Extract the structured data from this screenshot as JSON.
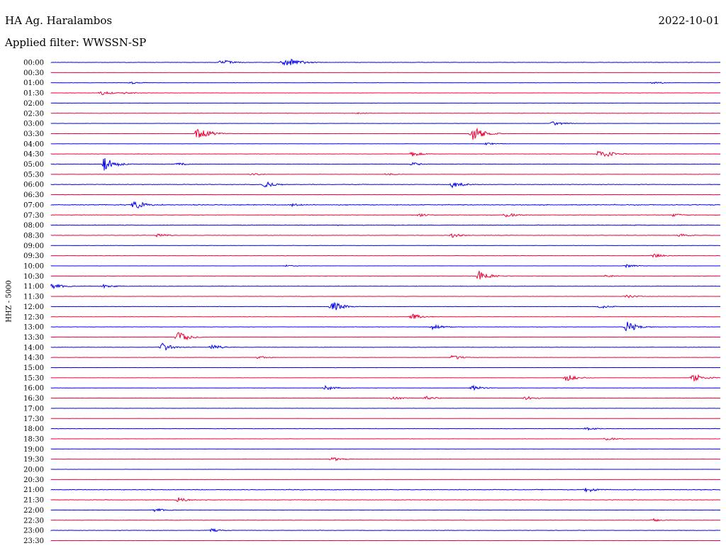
{
  "header": {
    "station": "HA Ag. Haralambos",
    "date": "2022-10-01",
    "filter": "Applied filter: WWSSN-SP"
  },
  "chart_data": {
    "type": "line",
    "channel_label": "HHZ - 5000",
    "colors": [
      "#0000ee",
      "#ee0033"
    ],
    "rows": [
      {
        "time": "00:00",
        "events": [
          [
            0.255,
            0.35
          ],
          [
            0.345,
            0.18
          ],
          [
            0.35,
            0.7
          ],
          [
            0.375,
            0.2
          ]
        ],
        "noise": 0.25
      },
      {
        "time": "00:30",
        "events": [],
        "noise": 0.1
      },
      {
        "time": "01:00",
        "events": [
          [
            0.12,
            0.15
          ],
          [
            0.9,
            0.15
          ]
        ],
        "noise": 0.18
      },
      {
        "time": "01:30",
        "events": [
          [
            0.075,
            0.28
          ],
          [
            0.11,
            0.15
          ]
        ],
        "noise": 0.2
      },
      {
        "time": "02:00",
        "events": [],
        "noise": 0.1
      },
      {
        "time": "02:30",
        "events": [
          [
            0.46,
            0.1
          ]
        ],
        "noise": 0.2
      },
      {
        "time": "03:00",
        "events": [
          [
            0.75,
            0.3
          ]
        ],
        "noise": 0.15
      },
      {
        "time": "03:30",
        "events": [
          [
            0.22,
            1.0
          ],
          [
            0.63,
            1.0
          ]
        ],
        "noise": 0.15
      },
      {
        "time": "04:00",
        "events": [
          [
            0.65,
            0.15
          ]
        ],
        "noise": 0.12
      },
      {
        "time": "04:30",
        "events": [
          [
            0.54,
            0.3
          ],
          [
            0.82,
            0.7
          ]
        ],
        "noise": 0.25
      },
      {
        "time": "05:00",
        "events": [
          [
            0.08,
            0.85
          ],
          [
            0.19,
            0.2
          ],
          [
            0.54,
            0.2
          ]
        ],
        "noise": 0.28
      },
      {
        "time": "05:30",
        "events": [
          [
            0.3,
            0.15
          ],
          [
            0.5,
            0.15
          ]
        ],
        "noise": 0.2
      },
      {
        "time": "06:00",
        "events": [
          [
            0.32,
            0.4
          ],
          [
            0.6,
            0.45
          ]
        ],
        "noise": 0.35
      },
      {
        "time": "06:30",
        "events": [],
        "noise": 0.25
      },
      {
        "time": "07:00",
        "events": [
          [
            0.125,
            0.6
          ],
          [
            0.36,
            0.2
          ]
        ],
        "noise": 0.55
      },
      {
        "time": "07:30",
        "events": [
          [
            0.55,
            0.2
          ],
          [
            0.68,
            0.3
          ],
          [
            0.93,
            0.2
          ]
        ],
        "noise": 0.3
      },
      {
        "time": "08:00",
        "events": [],
        "noise": 0.4
      },
      {
        "time": "08:30",
        "events": [
          [
            0.16,
            0.25
          ],
          [
            0.6,
            0.25
          ],
          [
            0.94,
            0.2
          ]
        ],
        "noise": 0.3
      },
      {
        "time": "09:00",
        "events": [],
        "noise": 0.2
      },
      {
        "time": "09:30",
        "events": [
          [
            0.9,
            0.3
          ]
        ],
        "noise": 0.2
      },
      {
        "time": "10:00",
        "events": [
          [
            0.35,
            0.12
          ],
          [
            0.86,
            0.2
          ]
        ],
        "noise": 0.12
      },
      {
        "time": "10:30",
        "events": [
          [
            0.64,
            0.7
          ],
          [
            0.83,
            0.15
          ]
        ],
        "noise": 0.22
      },
      {
        "time": "11:00",
        "events": [
          [
            0.0,
            0.45
          ],
          [
            0.08,
            0.25
          ]
        ],
        "noise": 0.28
      },
      {
        "time": "11:30",
        "events": [
          [
            0.86,
            0.2
          ]
        ],
        "noise": 0.2
      },
      {
        "time": "12:00",
        "events": [
          [
            0.42,
            0.65
          ],
          [
            0.82,
            0.25
          ]
        ],
        "noise": 0.22
      },
      {
        "time": "12:30",
        "events": [
          [
            0.54,
            0.35
          ]
        ],
        "noise": 0.22
      },
      {
        "time": "13:00",
        "events": [
          [
            0.57,
            0.35
          ],
          [
            0.86,
            0.7
          ]
        ],
        "noise": 0.22
      },
      {
        "time": "13:30",
        "events": [
          [
            0.19,
            0.7
          ]
        ],
        "noise": 0.2
      },
      {
        "time": "14:00",
        "events": [
          [
            0.165,
            0.55
          ],
          [
            0.24,
            0.35
          ]
        ],
        "noise": 0.25
      },
      {
        "time": "14:30",
        "events": [
          [
            0.31,
            0.18
          ],
          [
            0.6,
            0.3
          ]
        ],
        "noise": 0.15
      },
      {
        "time": "15:00",
        "events": [],
        "noise": 0.15
      },
      {
        "time": "15:30",
        "events": [
          [
            0.77,
            0.45
          ],
          [
            0.96,
            0.55
          ]
        ],
        "noise": 0.15
      },
      {
        "time": "16:00",
        "events": [
          [
            0.41,
            0.3
          ],
          [
            0.63,
            0.3
          ]
        ],
        "noise": 0.18
      },
      {
        "time": "16:30",
        "events": [
          [
            0.51,
            0.25
          ],
          [
            0.56,
            0.25
          ],
          [
            0.71,
            0.25
          ]
        ],
        "noise": 0.22
      },
      {
        "time": "17:00",
        "events": [],
        "noise": 0.12
      },
      {
        "time": "17:30",
        "events": [],
        "noise": 0.1
      },
      {
        "time": "18:00",
        "events": [
          [
            0.8,
            0.2
          ]
        ],
        "noise": 0.28
      },
      {
        "time": "18:30",
        "events": [
          [
            0.83,
            0.2
          ]
        ],
        "noise": 0.15
      },
      {
        "time": "19:00",
        "events": [],
        "noise": 0.12
      },
      {
        "time": "19:30",
        "events": [
          [
            0.42,
            0.25
          ]
        ],
        "noise": 0.12
      },
      {
        "time": "20:00",
        "events": [],
        "noise": 0.12
      },
      {
        "time": "20:30",
        "events": [],
        "noise": 0.12
      },
      {
        "time": "21:00",
        "events": [
          [
            0.8,
            0.35
          ]
        ],
        "noise": 0.45
      },
      {
        "time": "21:30",
        "events": [
          [
            0.19,
            0.3
          ]
        ],
        "noise": 0.35
      },
      {
        "time": "22:00",
        "events": [
          [
            0.155,
            0.25
          ]
        ],
        "noise": 0.15
      },
      {
        "time": "22:30",
        "events": [
          [
            0.9,
            0.2
          ]
        ],
        "noise": 0.2
      },
      {
        "time": "23:00",
        "events": [
          [
            0.24,
            0.2
          ]
        ],
        "noise": 0.28
      },
      {
        "time": "23:30",
        "events": [],
        "noise": 0.15
      }
    ]
  }
}
